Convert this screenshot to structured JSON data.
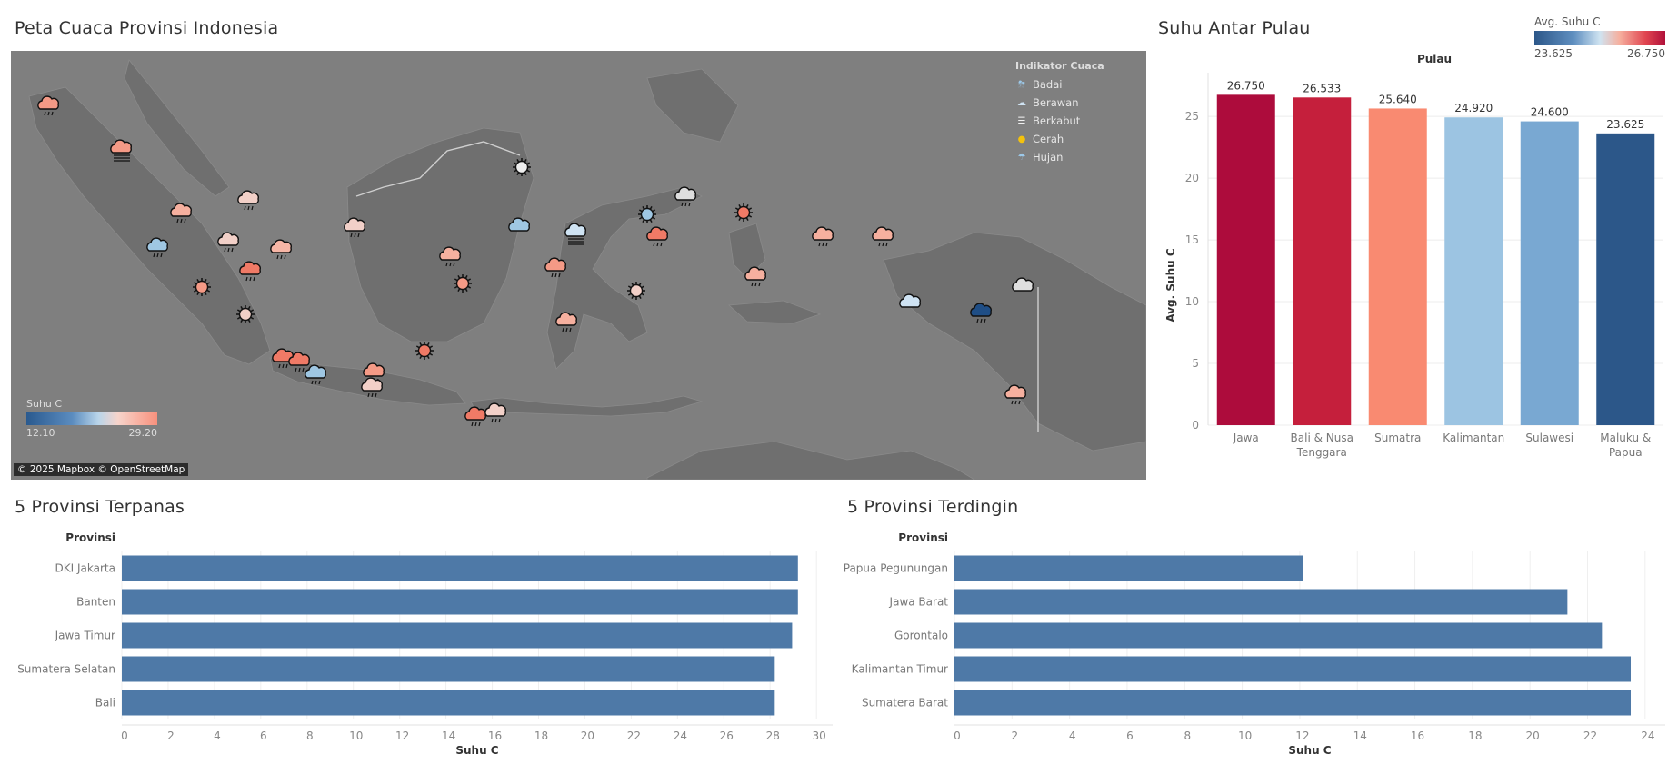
{
  "map": {
    "title": "Peta Cuaca Provinsi Indonesia",
    "legend_title": "Indikator Cuaca",
    "legend": [
      {
        "label": "Badai",
        "icon": "storm-icon"
      },
      {
        "label": "Berawan",
        "icon": "cloud-icon"
      },
      {
        "label": "Berkabut",
        "icon": "fog-icon"
      },
      {
        "label": "Cerah",
        "icon": "sun-icon"
      },
      {
        "label": "Hujan",
        "icon": "rain-icon"
      }
    ],
    "temp_legend": {
      "label": "Suhu C",
      "min": "12.10",
      "max": "29.20"
    },
    "copyright": "© 2025 Mapbox © OpenStreetMap"
  },
  "island": {
    "title": "Suhu Antar Pulau",
    "header": "Pulau",
    "ylabel": "Avg. Suhu C",
    "color_legend": {
      "label": "Avg. Suhu C",
      "min": "23.625",
      "max": "26.750"
    }
  },
  "hottest": {
    "title": "5 Provinsi Terpanas",
    "header": "Provinsi",
    "xlabel": "Suhu C"
  },
  "coldest": {
    "title": "5 Provinsi Terdingin",
    "header": "Provinsi",
    "xlabel": "Suhu C"
  },
  "colors": {
    "bar_blue": "#4e79a7",
    "map_bg": "#7f7f7f"
  },
  "chart_data": [
    {
      "type": "bar",
      "title": "Suhu Antar Pulau",
      "categories": [
        [
          "Jawa"
        ],
        [
          "Bali & Nusa",
          "Tenggara"
        ],
        [
          "Sumatra"
        ],
        [
          "Kalimantan"
        ],
        [
          "Sulawesi"
        ],
        [
          "Maluku &",
          "Papua"
        ]
      ],
      "values": [
        26.75,
        26.533,
        25.64,
        24.92,
        24.6,
        23.625
      ],
      "value_labels": [
        "26.750",
        "26.533",
        "25.640",
        "24.920",
        "24.600",
        "23.625"
      ],
      "colors": [
        "#ad0c3c",
        "#c51f3c",
        "#f98a71",
        "#9cc4e2",
        "#79a8d2",
        "#2c5789"
      ],
      "ylabel": "Avg. Suhu C",
      "yticks": [
        0,
        5,
        10,
        15,
        20,
        25
      ],
      "ylim": [
        0,
        28.1
      ],
      "grid": true
    },
    {
      "type": "bar",
      "orientation": "horizontal",
      "title": "5 Provinsi Terpanas",
      "categories": [
        "DKI Jakarta",
        "Banten",
        "Jawa Timur",
        "Sumatera Selatan",
        "Bali"
      ],
      "values": [
        29.2,
        29.2,
        28.95,
        28.2,
        28.2
      ],
      "xlabel": "Suhu C",
      "xticks": [
        0,
        2,
        4,
        6,
        8,
        10,
        12,
        14,
        16,
        18,
        20,
        22,
        24,
        26,
        28,
        30
      ],
      "xlim": [
        0,
        30.7
      ],
      "grid": true
    },
    {
      "type": "bar",
      "orientation": "horizontal",
      "title": "5 Provinsi Terdingin",
      "categories": [
        "Papua Pegunungan",
        "Jawa Barat",
        "Gorontalo",
        "Kalimantan Timur",
        "Sumatera Barat"
      ],
      "values": [
        12.1,
        21.3,
        22.5,
        23.5,
        23.5
      ],
      "xlabel": "Suhu C",
      "xticks": [
        0,
        2,
        4,
        6,
        8,
        10,
        12,
        14,
        16,
        18,
        20,
        22,
        24
      ],
      "xlim": [
        0,
        24.7
      ],
      "grid": true
    }
  ]
}
